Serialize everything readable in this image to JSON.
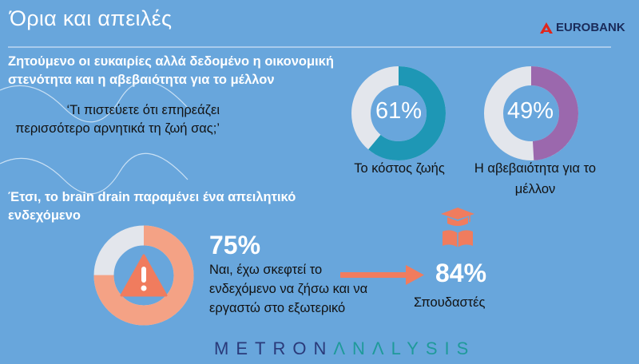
{
  "title": "Όρια και απειλές",
  "brand": {
    "name": "EUROBANK",
    "color": "#e1251b"
  },
  "section1": {
    "heading": "Ζητούμενο οι ευκαιρίες αλλά δεδομένο η οικονομική στενότητα και η αβεβαιότητα για το μέλλον",
    "question": "‘Τι πιστεύετε ότι επηρεάζει περισσότερο αρνητικά τη ζωή σας;’",
    "items": [
      {
        "value": 61,
        "label_pct": "61%",
        "label": "Το κόστος ζωής",
        "color": "#1e97b5"
      },
      {
        "value": 49,
        "label_pct": "49%",
        "label": "Η αβεβαιότητα για το μέλλον",
        "color": "#9b68ad"
      }
    ]
  },
  "section2": {
    "heading": "Έτσι, το brain drain παραμένει ένα απειλητικό ενδεχόμενο",
    "value": 75,
    "label_pct": "75%",
    "color": "#f4a285",
    "description": "Ναι, έχω σκεφτεί το ενδεχόμενο να ζήσω και να εργαστώ στο εξωτερικό",
    "students_pct": "84%",
    "students_label": "Σπουδαστές",
    "icons": [
      "warning-icon",
      "arrow-right-icon",
      "graduation-book-icon"
    ]
  },
  "footer_logo": {
    "part1": "METRON",
    "part2": "ΛNΛLYSIS"
  }
}
